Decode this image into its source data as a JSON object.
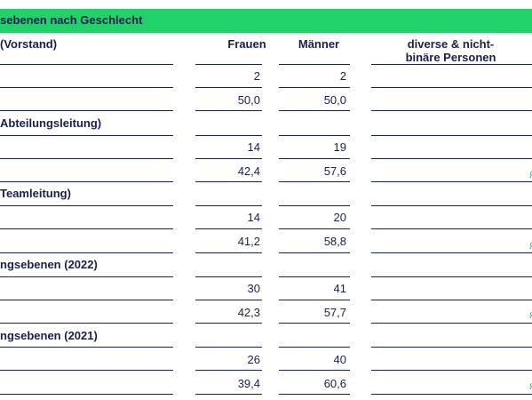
{
  "header": {
    "title": "sebenen nach Geschlecht",
    "accent_color": "#21d26a",
    "text_color": "#1a1f4e"
  },
  "columns": {
    "label": "(Vorstand)",
    "frauen": "Frauen",
    "maenner": "Männer",
    "diverse": "diverse & nicht-binäre Personen"
  },
  "sections": [
    {
      "label": "(Vorstand)",
      "rows": [
        {
          "frauen": "2",
          "maenner": "2"
        },
        {
          "frauen": "50,0",
          "maenner": "50,0"
        }
      ]
    },
    {
      "label": "Abteilungsleitung)",
      "rows": [
        {
          "frauen": "14",
          "maenner": "19"
        },
        {
          "frauen": "42,4",
          "maenner": "57,6"
        }
      ]
    },
    {
      "label": "Teamleitung)",
      "rows": [
        {
          "frauen": "14",
          "maenner": "20"
        },
        {
          "frauen": "41,2",
          "maenner": "58,8"
        }
      ]
    },
    {
      "label": "ngsebenen (2022)",
      "rows": [
        {
          "frauen": "30",
          "maenner": "41"
        },
        {
          "frauen": "42,3",
          "maenner": "57,7"
        }
      ]
    },
    {
      "label": "ngsebenen (2021)",
      "rows": [
        {
          "frauen": "26",
          "maenner": "40"
        },
        {
          "frauen": "39,4",
          "maenner": "60,6"
        }
      ]
    }
  ]
}
